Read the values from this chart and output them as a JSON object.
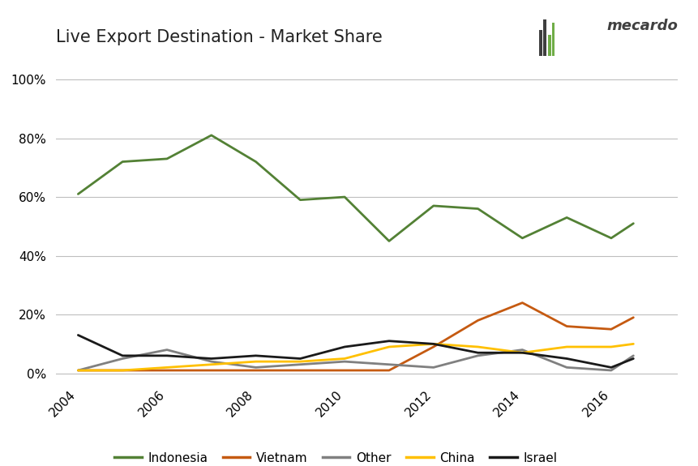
{
  "title": "Live Export Destination - Market Share",
  "years": [
    2004,
    2005,
    2006,
    2007,
    2008,
    2009,
    2010,
    2011,
    2012,
    2013,
    2014,
    2015,
    2016,
    2016.5
  ],
  "Indonesia": [
    0.61,
    0.72,
    0.73,
    0.81,
    0.72,
    0.59,
    0.6,
    0.45,
    0.57,
    0.56,
    0.46,
    0.53,
    0.46,
    0.51
  ],
  "Vietnam": [
    0.01,
    0.01,
    0.01,
    0.01,
    0.01,
    0.01,
    0.01,
    0.01,
    0.09,
    0.18,
    0.24,
    0.16,
    0.15,
    0.19
  ],
  "Other": [
    0.01,
    0.05,
    0.08,
    0.04,
    0.02,
    0.03,
    0.04,
    0.03,
    0.02,
    0.06,
    0.08,
    0.02,
    0.01,
    0.06
  ],
  "China": [
    0.01,
    0.01,
    0.02,
    0.03,
    0.04,
    0.04,
    0.05,
    0.09,
    0.1,
    0.09,
    0.07,
    0.09,
    0.09,
    0.1
  ],
  "Israel": [
    0.13,
    0.06,
    0.06,
    0.05,
    0.06,
    0.05,
    0.09,
    0.11,
    0.1,
    0.07,
    0.07,
    0.05,
    0.02,
    0.05
  ],
  "colors": {
    "Indonesia": "#538135",
    "Vietnam": "#C55A11",
    "Other": "#808080",
    "China": "#FFC000",
    "Israel": "#1A1A1A"
  },
  "legend_labels": [
    "Indonesia",
    "Vietnam",
    "Other",
    "China",
    "Israel"
  ],
  "background_color": "#FFFFFF",
  "grid_color": "#BEBEBE",
  "yticks": [
    0.0,
    0.2,
    0.4,
    0.6,
    0.8,
    1.0
  ],
  "ylim": [
    -0.03,
    1.08
  ],
  "xlim": [
    2003.5,
    2017.5
  ],
  "xticks": [
    2004,
    2006,
    2008,
    2010,
    2012,
    2014,
    2016
  ],
  "mecardo_text": "mecardo",
  "mecardo_color": "#404040"
}
